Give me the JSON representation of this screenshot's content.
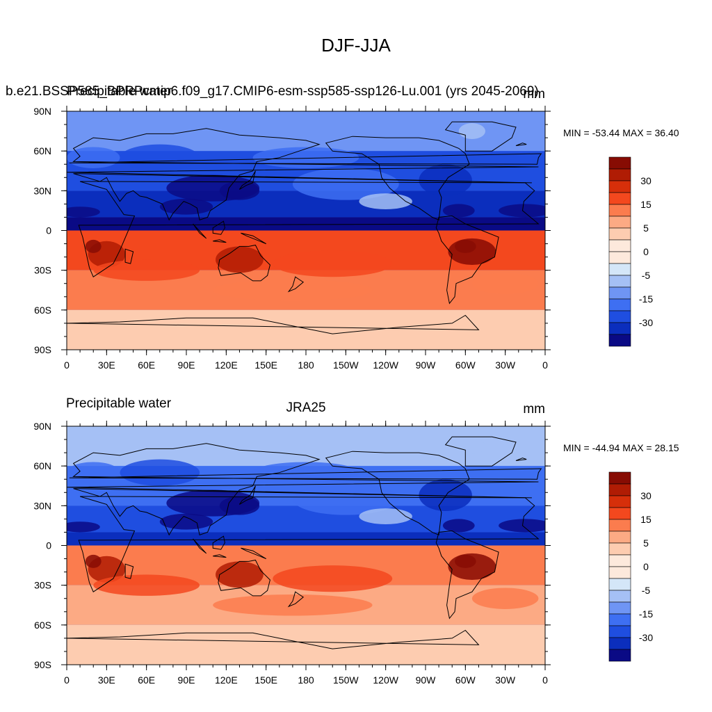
{
  "figure_title": "DJF-JJA",
  "palette": [
    "#0a0a85",
    "#0b2ebd",
    "#1f4ee0",
    "#3e6ff2",
    "#6f95f4",
    "#a5c0f5",
    "#d4e6f8",
    "#fde9dc",
    "#fdccb0",
    "#fcaa84",
    "#fb7c4e",
    "#f3481e",
    "#d62f0a",
    "#b01c04",
    "#870c03"
  ],
  "panels": [
    {
      "id": "top",
      "left_title": "b.e21.BSSP585_BPRPcmip6.f09_g17.CMIP6-esm-ssp585-ssp126-Lu.001 (yrs 2045-2069)",
      "left_title_overlay": "Precipitable water",
      "center_title": "",
      "units": "mm",
      "minmax": "MIN = -53.44 MAX =  36.40",
      "min": -53.44,
      "max": 36.4
    },
    {
      "id": "bottom",
      "left_title": "Precipitable water",
      "center_title": "JRA25",
      "units": "mm",
      "minmax": "MIN = -44.94 MAX =  28.15",
      "min": -44.94,
      "max": 28.15
    }
  ],
  "chart_data": [
    {
      "type": "heatmap",
      "title": "DJF-JJA",
      "subtitle": "b.e21.BSSP585_BPRPcmip6.f09_g17.CMIP6-esm-ssp585-ssp126-Lu.001 (yrs 2045-2069)",
      "variable": "Precipitable water",
      "units": "mm",
      "x_ticks": [
        "0",
        "30E",
        "60E",
        "90E",
        "120E",
        "150E",
        "180",
        "150W",
        "120W",
        "90W",
        "60W",
        "30W",
        "0"
      ],
      "y_ticks": [
        "90N",
        "60N",
        "30N",
        "0",
        "30S",
        "60S",
        "90S"
      ],
      "xlim": [
        0,
        360
      ],
      "ylim": [
        -90,
        90
      ],
      "colorbar_levels": [
        -40,
        -35,
        -30,
        -25,
        -20,
        -15,
        -10,
        -5,
        -2,
        0,
        2,
        5,
        10,
        15,
        20,
        25,
        30,
        35,
        40
      ],
      "colorbar_labels": [
        "30",
        "15",
        "5",
        "0",
        "-5",
        "-15",
        "-30"
      ],
      "bands": [
        {
          "lat": "60N-90N",
          "value": -10
        },
        {
          "lat": "30N-60N",
          "value": -20
        },
        {
          "lat": "10N-30N",
          "value": -25
        },
        {
          "lat": "0-10N",
          "value": -30
        },
        {
          "lat": "0-30S",
          "value": 12
        },
        {
          "lat": "30S-60S",
          "value": 6
        },
        {
          "lat": "60S-90S",
          "value": 1
        }
      ],
      "min": -53.44,
      "max": 36.4
    },
    {
      "type": "heatmap",
      "title": "JRA25",
      "variable": "Precipitable water",
      "units": "mm",
      "x_ticks": [
        "0",
        "30E",
        "60E",
        "90E",
        "120E",
        "150E",
        "180",
        "150W",
        "120W",
        "90W",
        "60W",
        "30W",
        "0"
      ],
      "y_ticks": [
        "90N",
        "60N",
        "30N",
        "0",
        "30S",
        "60S",
        "90S"
      ],
      "xlim": [
        0,
        360
      ],
      "ylim": [
        -90,
        90
      ],
      "colorbar_levels": [
        -40,
        -35,
        -30,
        -25,
        -20,
        -15,
        -10,
        -5,
        -2,
        0,
        2,
        5,
        10,
        15,
        20,
        25,
        30,
        35,
        40
      ],
      "colorbar_labels": [
        "30",
        "15",
        "5",
        "0",
        "-5",
        "-15",
        "-30"
      ],
      "bands": [
        {
          "lat": "60N-90N",
          "value": -8
        },
        {
          "lat": "30N-60N",
          "value": -18
        },
        {
          "lat": "10N-30N",
          "value": -22
        },
        {
          "lat": "0-10N",
          "value": -28
        },
        {
          "lat": "0-30S",
          "value": 10
        },
        {
          "lat": "30S-60S",
          "value": 5
        },
        {
          "lat": "60S-90S",
          "value": 1
        }
      ],
      "min": -44.94,
      "max": 28.15
    }
  ]
}
